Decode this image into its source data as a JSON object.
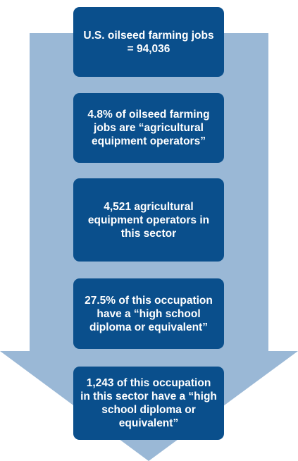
{
  "colors": {
    "arrow": "#9ab8d6",
    "box": "#0a4f8c",
    "box_text": "#ffffff"
  },
  "steps": [
    {
      "text": "U.S. oilseed farming jobs = 94,036"
    },
    {
      "text": "4.8% of oilseed farming jobs are “agricultural equipment operators”"
    },
    {
      "text": "4,521 agricultural equipment operators in this sector"
    },
    {
      "text": "27.5% of this occupation have a “high school diploma or equivalent”"
    },
    {
      "text": "1,243 of this occupation in this sector have a “high school diploma or equivalent”"
    }
  ]
}
